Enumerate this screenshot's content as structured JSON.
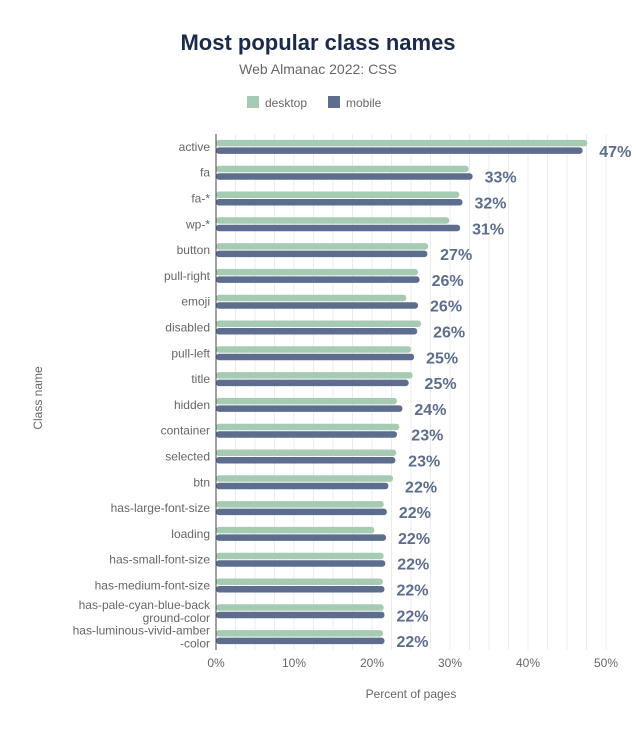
{
  "chart_data": {
    "type": "bar",
    "orientation": "horizontal",
    "title": "Most popular class names",
    "subtitle": "Web Almanac 2022: CSS",
    "xlabel": "Percent of pages",
    "ylabel": "Class name",
    "xlim": [
      0,
      50
    ],
    "x_ticks": [
      "0%",
      "10%",
      "20%",
      "30%",
      "40%",
      "50%"
    ],
    "grid": true,
    "legend_position": "top",
    "colors": {
      "desktop": "#a5cbb3",
      "mobile": "#5c6d8d"
    },
    "categories": [
      [
        "active"
      ],
      [
        "fa"
      ],
      [
        "fa-*"
      ],
      [
        "wp-*"
      ],
      [
        "button"
      ],
      [
        "pull-right"
      ],
      [
        "emoji"
      ],
      [
        "disabled"
      ],
      [
        "pull-left"
      ],
      [
        "title"
      ],
      [
        "hidden"
      ],
      [
        "container"
      ],
      [
        "selected"
      ],
      [
        "btn"
      ],
      [
        "has-large-font-size"
      ],
      [
        "loading"
      ],
      [
        "has-small-font-size"
      ],
      [
        "has-medium-font-size"
      ],
      [
        "has-pale-cyan-blue-back",
        "ground-color"
      ],
      [
        "has-luminous-vivid-amber",
        "-color"
      ]
    ],
    "series": [
      {
        "name": "desktop",
        "values": [
          47.6,
          32.4,
          31.2,
          29.9,
          27.2,
          25.9,
          24.4,
          26.3,
          25.0,
          25.2,
          23.2,
          23.5,
          23.1,
          22.7,
          21.5,
          20.3,
          21.5,
          21.4,
          21.5,
          21.4
        ]
      },
      {
        "name": "mobile",
        "values": [
          47.0,
          32.9,
          31.6,
          31.3,
          27.1,
          26.1,
          25.9,
          25.8,
          25.4,
          24.7,
          23.9,
          23.2,
          23.0,
          22.1,
          21.9,
          21.8,
          21.7,
          21.6,
          21.6,
          21.6
        ]
      }
    ],
    "data_labels": [
      "47%",
      "33%",
      "32%",
      "31%",
      "27%",
      "26%",
      "26%",
      "26%",
      "25%",
      "25%",
      "24%",
      "23%",
      "23%",
      "22%",
      "22%",
      "22%",
      "22%",
      "22%",
      "22%",
      "22%"
    ]
  }
}
